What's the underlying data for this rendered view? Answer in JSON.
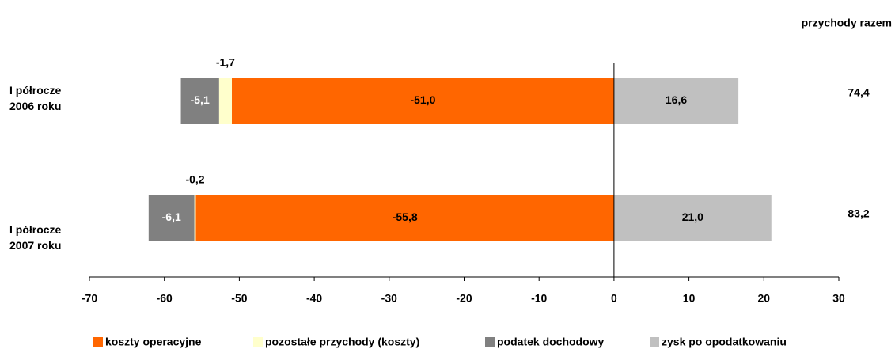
{
  "chart_data": {
    "type": "stacked-barh",
    "categories": [
      "I półrocze 2006 roku",
      "I półrocze 2007 roku"
    ],
    "series": [
      {
        "name": "koszty operacyjne",
        "color": "#ff6600",
        "label_color": "#000000",
        "values": [
          -51.0,
          -55.8
        ],
        "value_labels": [
          "-51,0",
          "-55,8"
        ]
      },
      {
        "name": "pozostałe przychody (koszty)",
        "color": "#ffffcc",
        "label_color": "#000000",
        "values": [
          -1.7,
          -0.2
        ],
        "value_labels": [
          "-1,7",
          "-0,2"
        ]
      },
      {
        "name": "podatek dochodowy",
        "color": "#808080",
        "label_color": "#ffffff",
        "values": [
          -5.1,
          -6.1
        ],
        "value_labels": [
          "-5,1",
          "-6,1"
        ]
      },
      {
        "name": "zysk po opodatkowaniu",
        "color": "#c0c0c0",
        "label_color": "#000000",
        "values": [
          16.6,
          21.0
        ],
        "value_labels": [
          "16,6",
          "21,0"
        ]
      }
    ],
    "totals": {
      "title": "przychody razem",
      "values": [
        74.4,
        83.2
      ],
      "value_labels": [
        "74,4",
        "83,2"
      ]
    },
    "xlim": [
      -70,
      30
    ],
    "xticks": [
      -70,
      -60,
      -50,
      -40,
      -30,
      -20,
      -10,
      0,
      10,
      20,
      30
    ],
    "legend": "bottom"
  }
}
